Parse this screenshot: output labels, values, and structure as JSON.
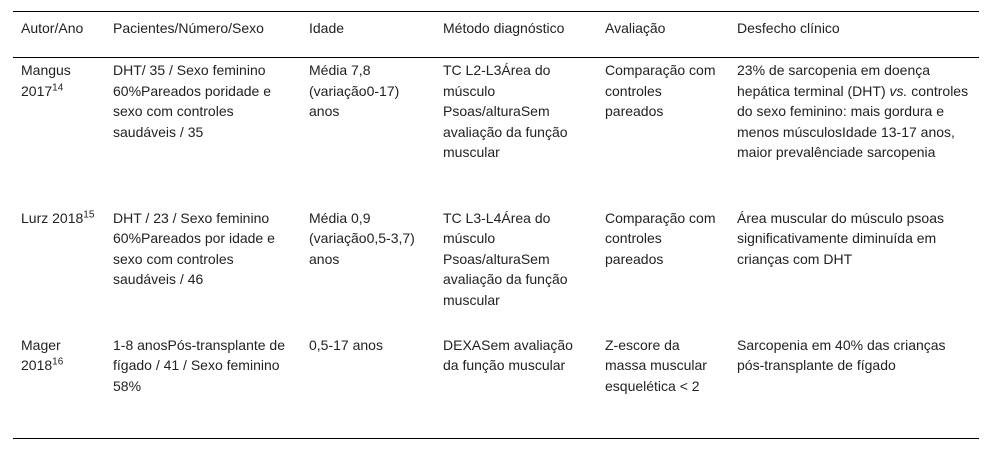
{
  "table": {
    "headers": {
      "author": "Autor/Ano",
      "patients": "Pacientes/Número/Sexo",
      "age": "Idade",
      "method": "Método diagnóstico",
      "evaluation": "Avaliação",
      "outcome": "Desfecho clínico"
    },
    "rows": [
      {
        "author": "Mangus 2017",
        "ref": "14",
        "patients": "DHT/ 35 / Sexo feminino 60%Pareados poridade e sexo com controles saudáveis / 35",
        "age": "Média 7,8 (variação0-17) anos",
        "method": "TC L2-L3Área do músculo Psoas/alturaSem avaliação da função muscular",
        "evaluation": "Comparação com controles pareados",
        "outcome_before": "23% de sarcopenia em doença hepática terminal (DHT) ",
        "outcome_em": "vs.",
        "outcome_after": " controles do sexo feminino: mais gordura e menos músculosIdade 13-17 anos, maior prevalênciade sarcopenia"
      },
      {
        "author": "Lurz 2018",
        "ref": "15",
        "patients": "DHT / 23 / Sexo feminino 60%Pareados por idade e sexo com controles saudáveis / 46",
        "age": "Média 0,9 (variação0,5-3,7) anos",
        "method": "TC L3-L4Área do músculo Psoas/alturaSem avaliação da função muscular",
        "evaluation": "Comparação com controles pareados",
        "outcome": "Área muscular do músculo psoas significativamente diminuída em crianças com DHT"
      },
      {
        "author": "Mager 2018",
        "ref": "16",
        "patients": "1-8 anosPós-transplante de fígado / 41 / Sexo feminino 58%",
        "age": "0,5-17 anos",
        "method": "DEXASem avaliação da função muscular",
        "evaluation": "Z-escore da massa muscular esquelética < 2",
        "outcome": "Sarcopenia em 40% das crianças pós-transplante de fígado"
      }
    ]
  }
}
